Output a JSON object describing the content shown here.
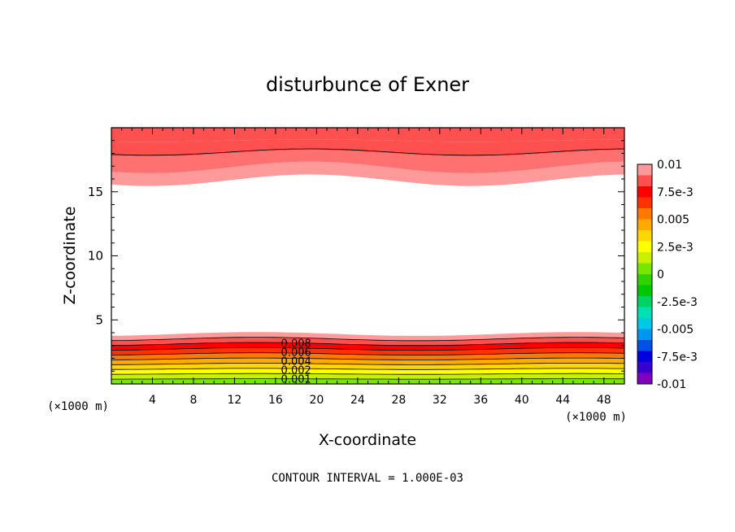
{
  "chart_data": {
    "type": "heatmap",
    "title": "disturbunce of Exner",
    "xlabel": "X-coordinate",
    "ylabel": "Z-coordinate",
    "x_unit": "(×1000 m)",
    "z_unit": "(×1000 m)",
    "xlim": [
      0,
      50
    ],
    "ylim": [
      0,
      20
    ],
    "x_ticks": [
      4,
      8,
      12,
      16,
      20,
      24,
      28,
      32,
      36,
      40,
      44,
      48
    ],
    "y_ticks": [
      5,
      10,
      15
    ],
    "footer": "CONTOUR INTERVAL = 1.000E-03",
    "contour_interval": 0.001,
    "contour_labels": [
      "0.008",
      "0.006",
      "0.004",
      "0.002",
      "0.001"
    ],
    "colorbar": {
      "min": -0.01,
      "max": 0.01,
      "tick_labels": [
        "0.01",
        "7.5e-3",
        "0.005",
        "2.5e-3",
        "0",
        "-2.5e-3",
        "-0.005",
        "-7.5e-3",
        "-0.01"
      ],
      "colors": [
        "#8000c0",
        "#3a00cc",
        "#0000dc",
        "#0050e6",
        "#0096f0",
        "#00c8e6",
        "#00e0b4",
        "#00d264",
        "#00c800",
        "#32d200",
        "#78e600",
        "#c8f000",
        "#ffff00",
        "#ffd700",
        "#ffaa00",
        "#ff7800",
        "#ff3200",
        "#ff0000",
        "#ff5050",
        "#ff9a9a"
      ]
    },
    "colors": {
      "bottom_lines": "#000000",
      "blank_region": "#ffffff"
    },
    "field_notes": "Bottom layer z=0..~4 km shows positive values 0..0.008 increasing downward-to-upward boundary; top layer z~15.5..20 km shows values near 0.008..0.01; interior near zero (white)."
  }
}
